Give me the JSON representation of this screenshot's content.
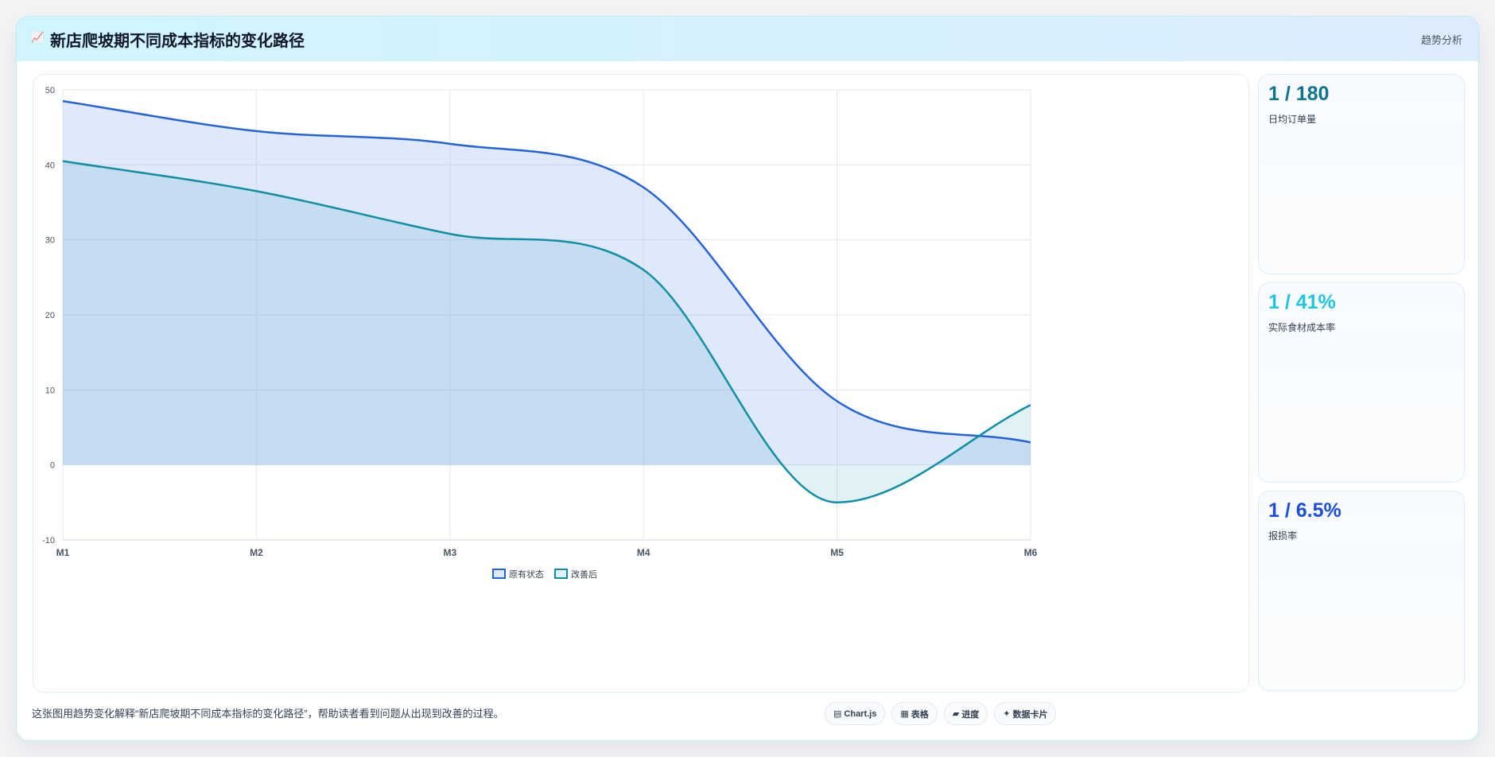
{
  "header": {
    "icon": "📈",
    "title": "新店爬坡期不同成本指标的变化路径",
    "tag": "趋势分析"
  },
  "stats": [
    {
      "value": "1 / 180",
      "label": "日均订单量",
      "color": "#0e7490"
    },
    {
      "value": "1 / 41%",
      "label": "实际食材成本率",
      "color": "#22c4dd"
    },
    {
      "value": "1 / 6.5%",
      "label": "报损率",
      "color": "#1d4ed8"
    }
  ],
  "caption": "这张图用趋势变化解释“新店爬坡期不同成本指标的变化路径”，帮助读者看到问题从出现到改善的过程。",
  "pills": [
    {
      "icon": "▤",
      "label": "Chart.js"
    },
    {
      "icon": "▦",
      "label": "表格"
    },
    {
      "icon": "▰",
      "label": "进度"
    },
    {
      "icon": "✦",
      "label": "数据卡片"
    }
  ],
  "chart_data": {
    "type": "line",
    "categories": [
      "M1",
      "M2",
      "M3",
      "M4",
      "M5",
      "M6"
    ],
    "ylim": [
      -10,
      50
    ],
    "yticks": [
      -10,
      0,
      10,
      20,
      30,
      40,
      50
    ],
    "grid": true,
    "legend": "bottom",
    "series": [
      {
        "name": "原有状态",
        "values": [
          48.5,
          44.5,
          42.8,
          37,
          8.5,
          3
        ],
        "color": "#2563d9",
        "fill": "rgba(100,145,235,0.20)"
      },
      {
        "name": "改善后",
        "values": [
          40.5,
          36.5,
          30.8,
          26,
          -5,
          8
        ],
        "color": "#0e8fa6",
        "fill": "rgba(20,150,175,0.13)"
      }
    ]
  }
}
